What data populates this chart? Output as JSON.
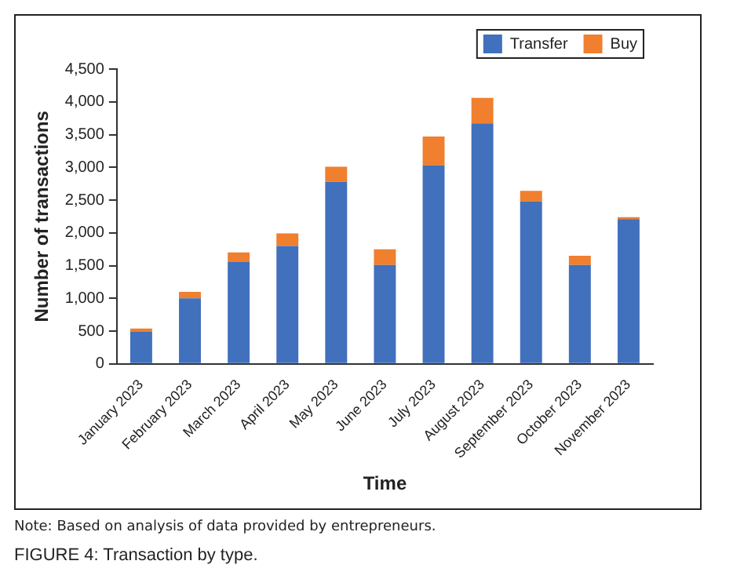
{
  "chart_data": {
    "type": "bar",
    "title": "FIGURE 4: Transaction by type.",
    "xlabel": "Time",
    "ylabel": "Number of transactions",
    "categories": [
      "January 2023",
      "February 2023",
      "March 2023",
      "April 2023",
      "May 2023",
      "June 2023",
      "July 2023",
      "August 2023",
      "September 2023",
      "October 2023",
      "November 2023"
    ],
    "series": [
      {
        "name": "Transfer",
        "color": "#4170bd",
        "values": [
          490,
          1000,
          1560,
          1800,
          2780,
          1510,
          3030,
          3670,
          2480,
          1510,
          2210
        ]
      },
      {
        "name": "Buy",
        "color": "#f07f2e",
        "values": [
          50,
          100,
          140,
          190,
          230,
          240,
          440,
          390,
          160,
          140,
          30
        ]
      }
    ],
    "stacked": true,
    "ylim": [
      0,
      4500
    ],
    "yticks": [
      0,
      500,
      {
        "value": 1000,
        "label": "1,000"
      },
      {
        "value": 1500,
        "label": "1,500"
      },
      {
        "value": 2000,
        "label": "2,000"
      },
      {
        "value": 2500,
        "label": "2,500"
      },
      {
        "value": 3000,
        "label": "3,000"
      },
      {
        "value": 3500,
        "label": "3,500"
      },
      {
        "value": 4000,
        "label": "4,000"
      },
      {
        "value": 4500,
        "label": "4,500"
      }
    ],
    "grid": false,
    "legend": "top right",
    "annotations": [
      "Note: Based on analysis of data provided by entrepreneurs."
    ]
  }
}
